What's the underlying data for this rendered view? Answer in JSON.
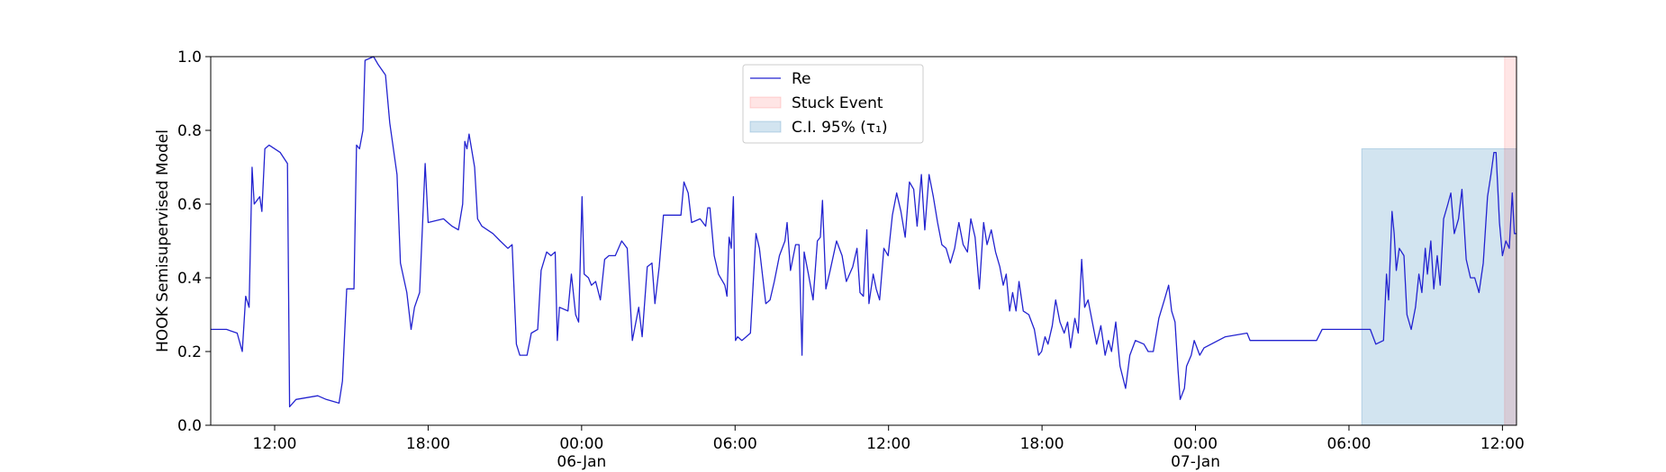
{
  "chart_data": {
    "type": "line",
    "ylabel": "HOOK Semisupervised Model",
    "xlim": [
      "1900-01-05 09:30",
      "1900-01-07 12:33"
    ],
    "ylim": [
      0,
      1
    ],
    "yticks": [
      {
        "value": 0,
        "label": "0.0"
      },
      0.2,
      0.4,
      0.6,
      0.8,
      {
        "value": 1,
        "label": "1.0"
      }
    ],
    "xticks": [
      {
        "value": "1900-01-05 12:00",
        "label": "12:00"
      },
      {
        "value": "1900-01-05 18:00",
        "label": "18:00"
      },
      {
        "value": "1900-01-06 00:00",
        "label": "00:00\n06-Jan\n1900"
      },
      {
        "value": "1900-01-06 06:00",
        "label": "06:00"
      },
      {
        "value": "1900-01-06 12:00",
        "label": "12:00"
      },
      {
        "value": "1900-01-06 18:00",
        "label": "18:00"
      },
      {
        "value": "1900-01-07 00:00",
        "label": "00:00\n07-Jan"
      },
      {
        "value": "1900-01-07 06:00",
        "label": "06:00"
      },
      {
        "value": "1900-01-07 12:00",
        "label": "12:00"
      }
    ],
    "legend": "upper center",
    "spans": [
      {
        "name": "Stuck Event",
        "color": "#ff0000",
        "x": [
          "1900-01-07 12:05",
          "1900-01-07 12:33"
        ]
      },
      {
        "name": "C.I. 95% (τ₁)",
        "color": "#1f77b4",
        "x": [
          "1900-01-07 06:30",
          "1900-01-07 12:33"
        ],
        "y": [
          0,
          0.75
        ]
      }
    ],
    "x": [
      "1900-01-05 09:30",
      "1900-01-05 10:07",
      "1900-01-05 10:32",
      "1900-01-05 10:44",
      "1900-01-05 10:52",
      "1900-01-05 11:00",
      "1900-01-05 11:07",
      "1900-01-05 11:12",
      "1900-01-05 11:25",
      "1900-01-05 11:30",
      "1900-01-05 11:37",
      "1900-01-05 11:47",
      "1900-01-05 12:13",
      "1900-01-05 12:30",
      "1900-01-05 12:35",
      "1900-01-05 12:50",
      "1900-01-05 13:41",
      "1900-01-05 14:01",
      "1900-01-05 14:31",
      "1900-01-05 14:39",
      "1900-01-05 14:49",
      "1900-01-05 15:06",
      "1900-01-05 15:12",
      "1900-01-05 15:19",
      "1900-01-05 15:27",
      "1900-01-05 15:32",
      "1900-01-05 15:52",
      "1900-01-05 16:02",
      "1900-01-05 16:20",
      "1900-01-05 16:30",
      "1900-01-05 16:47",
      "1900-01-05 16:55",
      "1900-01-05 17:10",
      "1900-01-05 17:20",
      "1900-01-05 17:28",
      "1900-01-05 17:40",
      "1900-01-05 17:53",
      "1900-01-05 18:00",
      "1900-01-05 18:36",
      "1900-01-05 18:56",
      "1900-01-05 19:11",
      "1900-01-05 19:21",
      "1900-01-05 19:26",
      "1900-01-05 19:31",
      "1900-01-05 19:36",
      "1900-01-05 19:49",
      "1900-01-05 19:56",
      "1900-01-05 20:06",
      "1900-01-05 20:32",
      "1900-01-05 20:49",
      "1900-01-05 21:07",
      "1900-01-05 21:17",
      "1900-01-05 21:27",
      "1900-01-05 21:35",
      "1900-01-05 21:52",
      "1900-01-05 22:02",
      "1900-01-05 22:17",
      "1900-01-05 22:25",
      "1900-01-05 22:38",
      "1900-01-05 22:48",
      "1900-01-05 22:58",
      "1900-01-05 23:03",
      "1900-01-05 23:08",
      "1900-01-05 23:28",
      "1900-01-05 23:36",
      "1900-01-05 23:46",
      "1900-01-05 23:53",
      "1900-01-06 00:01",
      "1900-01-06 00:06",
      "1900-01-06 00:16",
      "1900-01-06 00:23",
      "1900-01-06 00:33",
      "1900-01-06 00:44",
      "1900-01-06 00:54",
      "1900-01-06 01:04",
      "1900-01-06 01:19",
      "1900-01-06 01:34",
      "1900-01-06 01:47",
      "1900-01-06 01:59",
      "1900-01-06 02:14",
      "1900-01-06 02:22",
      "1900-01-06 02:34",
      "1900-01-06 02:45",
      "1900-01-06 02:52",
      "1900-01-06 03:02",
      "1900-01-06 03:12",
      "1900-01-06 03:25",
      "1900-01-06 03:53",
      "1900-01-06 04:00",
      "1900-01-06 04:10",
      "1900-01-06 04:18",
      "1900-01-06 04:38",
      "1900-01-06 04:51",
      "1900-01-06 04:56",
      "1900-01-06 05:01",
      "1900-01-06 05:11",
      "1900-01-06 05:21",
      "1900-01-06 05:36",
      "1900-01-06 05:41",
      "1900-01-06 05:46",
      "1900-01-06 05:51",
      "1900-01-06 05:56",
      "1900-01-06 06:01",
      "1900-01-06 06:06",
      "1900-01-06 06:16",
      "1900-01-06 06:36",
      "1900-01-06 06:49",
      "1900-01-06 06:57",
      "1900-01-06 07:12",
      "1900-01-06 07:22",
      "1900-01-06 07:32",
      "1900-01-06 07:44",
      "1900-01-06 07:57",
      "1900-01-06 08:02",
      "1900-01-06 08:10",
      "1900-01-06 08:22",
      "1900-01-06 08:30",
      "1900-01-06 08:37",
      "1900-01-06 08:42",
      "1900-01-06 08:52",
      "1900-01-06 09:03",
      "1900-01-06 09:13",
      "1900-01-06 09:20",
      "1900-01-06 09:25",
      "1900-01-06 09:33",
      "1900-01-06 09:43",
      "1900-01-06 09:58",
      "1900-01-06 10:11",
      "1900-01-06 10:21",
      "1900-01-06 10:36",
      "1900-01-06 10:46",
      "1900-01-06 10:53",
      "1900-01-06 11:01",
      "1900-01-06 11:09",
      "1900-01-06 11:14",
      "1900-01-06 11:24",
      "1900-01-06 11:31",
      "1900-01-06 11:39",
      "1900-01-06 11:49",
      "1900-01-06 11:59",
      "1900-01-06 12:09",
      "1900-01-06 12:19",
      "1900-01-06 12:29",
      "1900-01-06 12:39",
      "1900-01-06 12:49",
      "1900-01-06 12:59",
      "1900-01-06 13:07",
      "1900-01-06 13:17",
      "1900-01-06 13:25",
      "1900-01-06 13:35",
      "1900-01-06 13:45",
      "1900-01-06 13:55",
      "1900-01-06 14:05",
      "1900-01-06 14:15",
      "1900-01-06 14:25",
      "1900-01-06 14:35",
      "1900-01-06 14:45",
      "1900-01-06 14:55",
      "1900-01-06 15:05",
      "1900-01-06 15:13",
      "1900-01-06 15:23",
      "1900-01-06 15:33",
      "1900-01-06 15:43",
      "1900-01-06 15:51",
      "1900-01-06 16:01",
      "1900-01-06 16:11",
      "1900-01-06 16:21",
      "1900-01-06 16:29",
      "1900-01-06 16:36",
      "1900-01-06 16:44",
      "1900-01-06 16:51",
      "1900-01-06 16:59",
      "1900-01-06 17:06",
      "1900-01-06 17:16",
      "1900-01-06 17:29",
      "1900-01-06 17:42",
      "1900-01-06 17:52",
      "1900-01-06 17:59",
      "1900-01-06 18:07",
      "1900-01-06 18:14",
      "1900-01-06 18:24",
      "1900-01-06 18:32",
      "1900-01-06 18:42",
      "1900-01-06 18:52",
      "1900-01-06 19:00",
      "1900-01-06 19:07",
      "1900-01-06 19:17",
      "1900-01-06 19:25",
      "1900-01-06 19:33",
      "1900-01-06 19:40",
      "1900-01-06 19:48",
      "1900-01-06 19:58",
      "1900-01-06 20:08",
      "1900-01-06 20:18",
      "1900-01-06 20:28",
      "1900-01-06 20:36",
      "1900-01-06 20:43",
      "1900-01-06 20:53",
      "1900-01-06 21:03",
      "1900-01-06 21:16",
      "1900-01-06 21:26",
      "1900-01-06 21:39",
      "1900-01-06 21:59",
      "1900-01-06 22:09",
      "1900-01-06 22:21",
      "1900-01-06 22:34",
      "1900-01-06 22:47",
      "1900-01-06 22:57",
      "1900-01-06 23:04",
      "1900-01-06 23:12",
      "1900-01-06 23:19",
      "1900-01-06 23:24",
      "1900-01-06 23:34",
      "1900-01-06 23:39",
      "1900-01-06 23:50",
      "1900-01-06 23:57",
      "1900-01-07 00:10",
      "1900-01-07 00:20",
      "1900-01-07 01:10",
      "1900-01-07 02:01",
      "1900-01-07 02:08",
      "1900-01-07 04:44",
      "1900-01-07 04:57",
      "1900-01-07 06:50",
      "1900-01-07 07:03",
      "1900-01-07 07:21",
      "1900-01-07 07:28",
      "1900-01-07 07:33",
      "1900-01-07 07:41",
      "1900-01-07 07:46",
      "1900-01-07 07:51",
      "1900-01-07 07:58",
      "1900-01-07 08:09",
      "1900-01-07 08:16",
      "1900-01-07 08:26",
      "1900-01-07 08:36",
      "1900-01-07 08:44",
      "1900-01-07 08:51",
      "1900-01-07 08:59",
      "1900-01-07 09:04",
      "1900-01-07 09:12",
      "1900-01-07 09:19",
      "1900-01-07 09:27",
      "1900-01-07 09:34",
      "1900-01-07 09:42",
      "1900-01-07 09:52",
      "1900-01-07 09:59",
      "1900-01-07 10:07",
      "1900-01-07 10:17",
      "1900-01-07 10:25",
      "1900-01-07 10:35",
      "1900-01-07 10:45",
      "1900-01-07 10:55",
      "1900-01-07 11:05",
      "1900-01-07 11:15",
      "1900-01-07 11:25",
      "1900-01-07 11:33",
      "1900-01-07 11:40",
      "1900-01-07 11:45",
      "1900-01-07 11:53",
      "1900-01-07 12:00",
      "1900-01-07 12:08",
      "1900-01-07 12:16",
      "1900-01-07 12:23",
      "1900-01-07 12:28",
      "1900-01-07 12:33"
    ],
    "series": [
      {
        "name": "Re",
        "color": "#2323d0",
        "values": [
          0.26,
          0.26,
          0.25,
          0.2,
          0.35,
          0.32,
          0.7,
          0.6,
          0.62,
          0.58,
          0.75,
          0.76,
          0.74,
          0.71,
          0.05,
          0.07,
          0.08,
          0.07,
          0.06,
          0.12,
          0.37,
          0.37,
          0.76,
          0.75,
          0.8,
          0.99,
          1.0,
          0.98,
          0.95,
          0.82,
          0.68,
          0.44,
          0.36,
          0.26,
          0.32,
          0.36,
          0.71,
          0.55,
          0.56,
          0.54,
          0.53,
          0.6,
          0.77,
          0.75,
          0.79,
          0.7,
          0.56,
          0.54,
          0.52,
          0.5,
          0.48,
          0.49,
          0.22,
          0.19,
          0.19,
          0.25,
          0.26,
          0.42,
          0.47,
          0.46,
          0.47,
          0.23,
          0.32,
          0.31,
          0.41,
          0.3,
          0.28,
          0.62,
          0.41,
          0.4,
          0.38,
          0.39,
          0.34,
          0.45,
          0.46,
          0.46,
          0.5,
          0.48,
          0.23,
          0.32,
          0.24,
          0.43,
          0.44,
          0.33,
          0.43,
          0.57,
          0.57,
          0.57,
          0.66,
          0.63,
          0.55,
          0.56,
          0.54,
          0.59,
          0.59,
          0.46,
          0.41,
          0.38,
          0.35,
          0.51,
          0.48,
          0.62,
          0.23,
          0.24,
          0.23,
          0.25,
          0.52,
          0.48,
          0.33,
          0.34,
          0.39,
          0.46,
          0.5,
          0.55,
          0.42,
          0.49,
          0.49,
          0.19,
          0.47,
          0.41,
          0.34,
          0.5,
          0.51,
          0.61,
          0.37,
          0.42,
          0.5,
          0.46,
          0.39,
          0.43,
          0.48,
          0.36,
          0.35,
          0.53,
          0.33,
          0.41,
          0.37,
          0.34,
          0.48,
          0.46,
          0.57,
          0.63,
          0.58,
          0.51,
          0.66,
          0.64,
          0.54,
          0.68,
          0.53,
          0.68,
          0.62,
          0.55,
          0.49,
          0.48,
          0.44,
          0.48,
          0.55,
          0.49,
          0.47,
          0.56,
          0.51,
          0.37,
          0.55,
          0.49,
          0.53,
          0.47,
          0.43,
          0.38,
          0.41,
          0.31,
          0.36,
          0.31,
          0.39,
          0.31,
          0.3,
          0.26,
          0.19,
          0.2,
          0.24,
          0.22,
          0.27,
          0.34,
          0.28,
          0.25,
          0.28,
          0.21,
          0.29,
          0.25,
          0.45,
          0.32,
          0.34,
          0.28,
          0.22,
          0.27,
          0.19,
          0.23,
          0.2,
          0.28,
          0.16,
          0.1,
          0.19,
          0.23,
          0.22,
          0.2,
          0.2,
          0.29,
          0.34,
          0.38,
          0.31,
          0.28,
          0.15,
          0.07,
          0.1,
          0.16,
          0.19,
          0.23,
          0.19,
          0.21,
          0.24,
          0.25,
          0.23,
          0.23,
          0.26,
          0.26,
          0.22,
          0.23,
          0.41,
          0.34,
          0.58,
          0.52,
          0.42,
          0.48,
          0.46,
          0.3,
          0.26,
          0.32,
          0.41,
          0.36,
          0.48,
          0.41,
          0.5,
          0.37,
          0.46,
          0.38,
          0.56,
          0.6,
          0.63,
          0.52,
          0.56,
          0.64,
          0.45,
          0.4,
          0.4,
          0.36,
          0.44,
          0.62,
          0.68,
          0.74,
          0.74,
          0.55,
          0.46,
          0.5,
          0.48,
          0.63,
          0.52,
          0.52
        ]
      }
    ]
  }
}
